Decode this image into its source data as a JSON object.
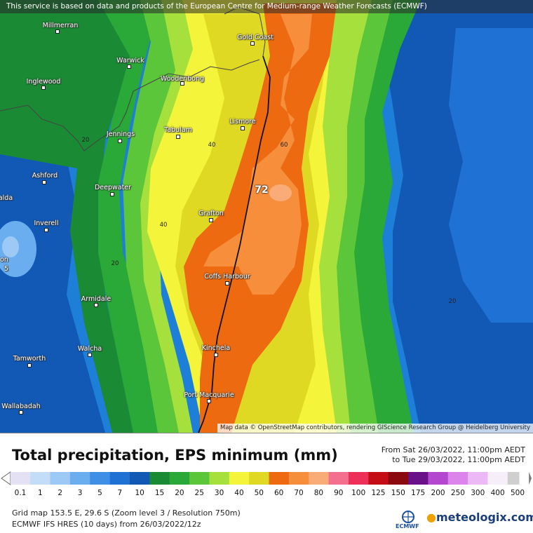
{
  "banner_text": "This service is based on data and products of the European Centre for Medium-range Weather Forecasts (ECMWF)",
  "attribution": "Map data © OpenStreetMap contributors, rendering GIScience Research Group @ Heidelberg University",
  "title": "Total precipitation, EPS minimum (mm)",
  "time_range": {
    "from": "From Sat 26/03/2022, 11:00pm AEDT",
    "to": "to Tue 29/03/2022, 11:00pm AEDT"
  },
  "cities": [
    {
      "name": "Millmerran"
    },
    {
      "name": "Gold Coast"
    },
    {
      "name": "Warwick"
    },
    {
      "name": "Inglewood"
    },
    {
      "name": "Woodenbong"
    },
    {
      "name": "Lismore"
    },
    {
      "name": "Tabulam"
    },
    {
      "name": "Jennings"
    },
    {
      "name": "Ashford"
    },
    {
      "name": "Deepwater"
    },
    {
      "name": "Grafton"
    },
    {
      "name": "Inverell"
    },
    {
      "name": "Coffs Harbour"
    },
    {
      "name": "Armidale"
    },
    {
      "name": "Walcha"
    },
    {
      "name": "Kinchela"
    },
    {
      "name": "Tamworth"
    },
    {
      "name": "Port Macquarie"
    },
    {
      "name": "Wallabadah"
    }
  ],
  "edge_labels": [
    "alda",
    "on",
    "5"
  ],
  "contour_labels": [
    "20",
    "40",
    "60",
    "40",
    "20",
    "20"
  ],
  "max_label": "72",
  "legend": {
    "ticks": [
      "0.1",
      "1",
      "2",
      "3",
      "5",
      "7",
      "10",
      "15",
      "20",
      "25",
      "30",
      "40",
      "50",
      "60",
      "70",
      "80",
      "90",
      "100",
      "125",
      "150",
      "175",
      "200",
      "250",
      "300",
      "400",
      "500"
    ],
    "colors": [
      "#e3e1f3",
      "#c3dcf7",
      "#9cc9f6",
      "#6aaef0",
      "#3f8fe6",
      "#1f71d4",
      "#1259b6",
      "#1a8a35",
      "#2aa838",
      "#5cc63a",
      "#a6e03d",
      "#f4f43a",
      "#e0d923",
      "#ee6a10",
      "#f78e3c",
      "#f9ac78",
      "#f46e8e",
      "#ee2f58",
      "#c50d16",
      "#8a0a10",
      "#6a1088",
      "#b347d0",
      "#dc84ec",
      "#ecb8f5",
      "#f6eef8",
      "#cfcfcf"
    ]
  },
  "info": {
    "line1": "Grid map 153.5 E, 29.6 S (Zoom level 3 / Resolution 750m)",
    "line2": "ECMWF IFS HRES (10 days) from 26/03/2022/12z"
  },
  "logos": {
    "ecmwf": "ECMWF",
    "brand": "meteologix.com"
  }
}
